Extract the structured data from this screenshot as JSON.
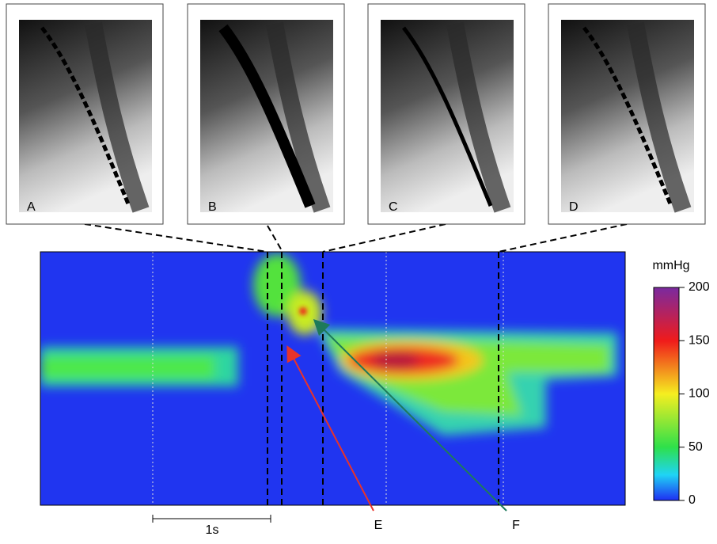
{
  "panels": [
    {
      "label": "A"
    },
    {
      "label": "B"
    },
    {
      "label": "C"
    },
    {
      "label": "D"
    }
  ],
  "colorbar": {
    "unit": "mmHg",
    "range": [
      0,
      200
    ],
    "ticks": [
      0,
      50,
      100,
      150,
      200
    ]
  },
  "scale_bar": {
    "label": "1s"
  },
  "arrows": [
    {
      "label": "E"
    },
    {
      "label": "F"
    }
  ]
}
